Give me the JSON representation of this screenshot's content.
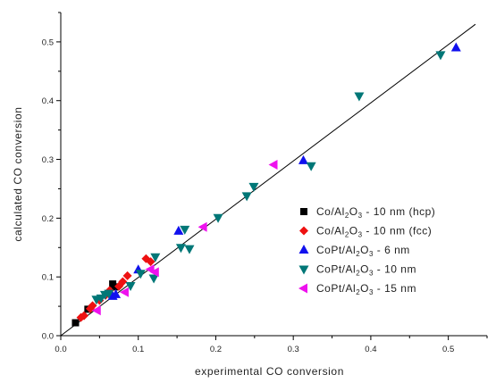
{
  "chart_data": {
    "type": "scatter",
    "xlabel": "experimental CO conversion",
    "ylabel": "calculated CO conversion",
    "xlim": [
      0,
      0.55
    ],
    "ylim": [
      0,
      0.55
    ],
    "x_ticks": [
      0.0,
      0.1,
      0.2,
      0.3,
      0.4,
      0.5
    ],
    "y_ticks": [
      0.0,
      0.1,
      0.2,
      0.3,
      0.4,
      0.5
    ],
    "x_tick_labels": [
      "0.0",
      "0.1",
      "0.2",
      "0.3",
      "0.4",
      "0.5"
    ],
    "y_tick_labels": [
      "0.0",
      "0.1",
      "0.2",
      "0.3",
      "0.4",
      "0.5"
    ],
    "grid": false,
    "legend_position": "bottom-right",
    "reference_line": {
      "x": [
        0,
        0.535
      ],
      "y": [
        0,
        0.53
      ]
    },
    "series": [
      {
        "name_parts": [
          "Co/Al",
          "2",
          "O",
          "3",
          " - 10 nm (hcp)"
        ],
        "marker": "square",
        "color": "#000000",
        "points": [
          [
            0.019,
            0.022
          ],
          [
            0.035,
            0.045
          ],
          [
            0.067,
            0.088
          ],
          [
            0.07,
            0.083
          ]
        ]
      },
      {
        "name_parts": [
          "Co/Al",
          "2",
          "O",
          "3",
          " - 10 nm (fcc)"
        ],
        "marker": "diamond",
        "color": "#ee1111",
        "points": [
          [
            0.026,
            0.031
          ],
          [
            0.03,
            0.034
          ],
          [
            0.038,
            0.046
          ],
          [
            0.041,
            0.051
          ],
          [
            0.05,
            0.06
          ],
          [
            0.058,
            0.069
          ],
          [
            0.063,
            0.077
          ],
          [
            0.075,
            0.084
          ],
          [
            0.08,
            0.092
          ],
          [
            0.086,
            0.102
          ],
          [
            0.11,
            0.131
          ],
          [
            0.116,
            0.126
          ]
        ]
      },
      {
        "name_parts": [
          "CoPt/Al",
          "2",
          "O",
          "3",
          " - 6 nm"
        ],
        "marker": "triangle-up",
        "color": "#1111ee",
        "points": [
          [
            0.067,
            0.067
          ],
          [
            0.071,
            0.07
          ],
          [
            0.1,
            0.112
          ],
          [
            0.152,
            0.178
          ],
          [
            0.313,
            0.298
          ],
          [
            0.51,
            0.49
          ]
        ]
      },
      {
        "name_parts": [
          "CoPt/Al",
          "2",
          "O",
          "3",
          " - 10 nm"
        ],
        "marker": "triangle-down",
        "color": "#007777",
        "points": [
          [
            0.046,
            0.062
          ],
          [
            0.052,
            0.064
          ],
          [
            0.057,
            0.07
          ],
          [
            0.062,
            0.072
          ],
          [
            0.09,
            0.085
          ],
          [
            0.103,
            0.106
          ],
          [
            0.12,
            0.098
          ],
          [
            0.122,
            0.134
          ],
          [
            0.155,
            0.15
          ],
          [
            0.16,
            0.181
          ],
          [
            0.166,
            0.148
          ],
          [
            0.203,
            0.201
          ],
          [
            0.24,
            0.238
          ],
          [
            0.249,
            0.254
          ],
          [
            0.323,
            0.289
          ],
          [
            0.385,
            0.408
          ],
          [
            0.49,
            0.478
          ]
        ]
      },
      {
        "name_parts": [
          "CoPt/Al",
          "2",
          "O",
          "3",
          " - 15 nm"
        ],
        "marker": "triangle-left",
        "color": "#ee11ee",
        "points": [
          [
            0.047,
            0.043
          ],
          [
            0.083,
            0.074
          ],
          [
            0.116,
            0.113
          ],
          [
            0.122,
            0.108
          ],
          [
            0.184,
            0.185
          ],
          [
            0.275,
            0.291
          ]
        ]
      }
    ]
  }
}
